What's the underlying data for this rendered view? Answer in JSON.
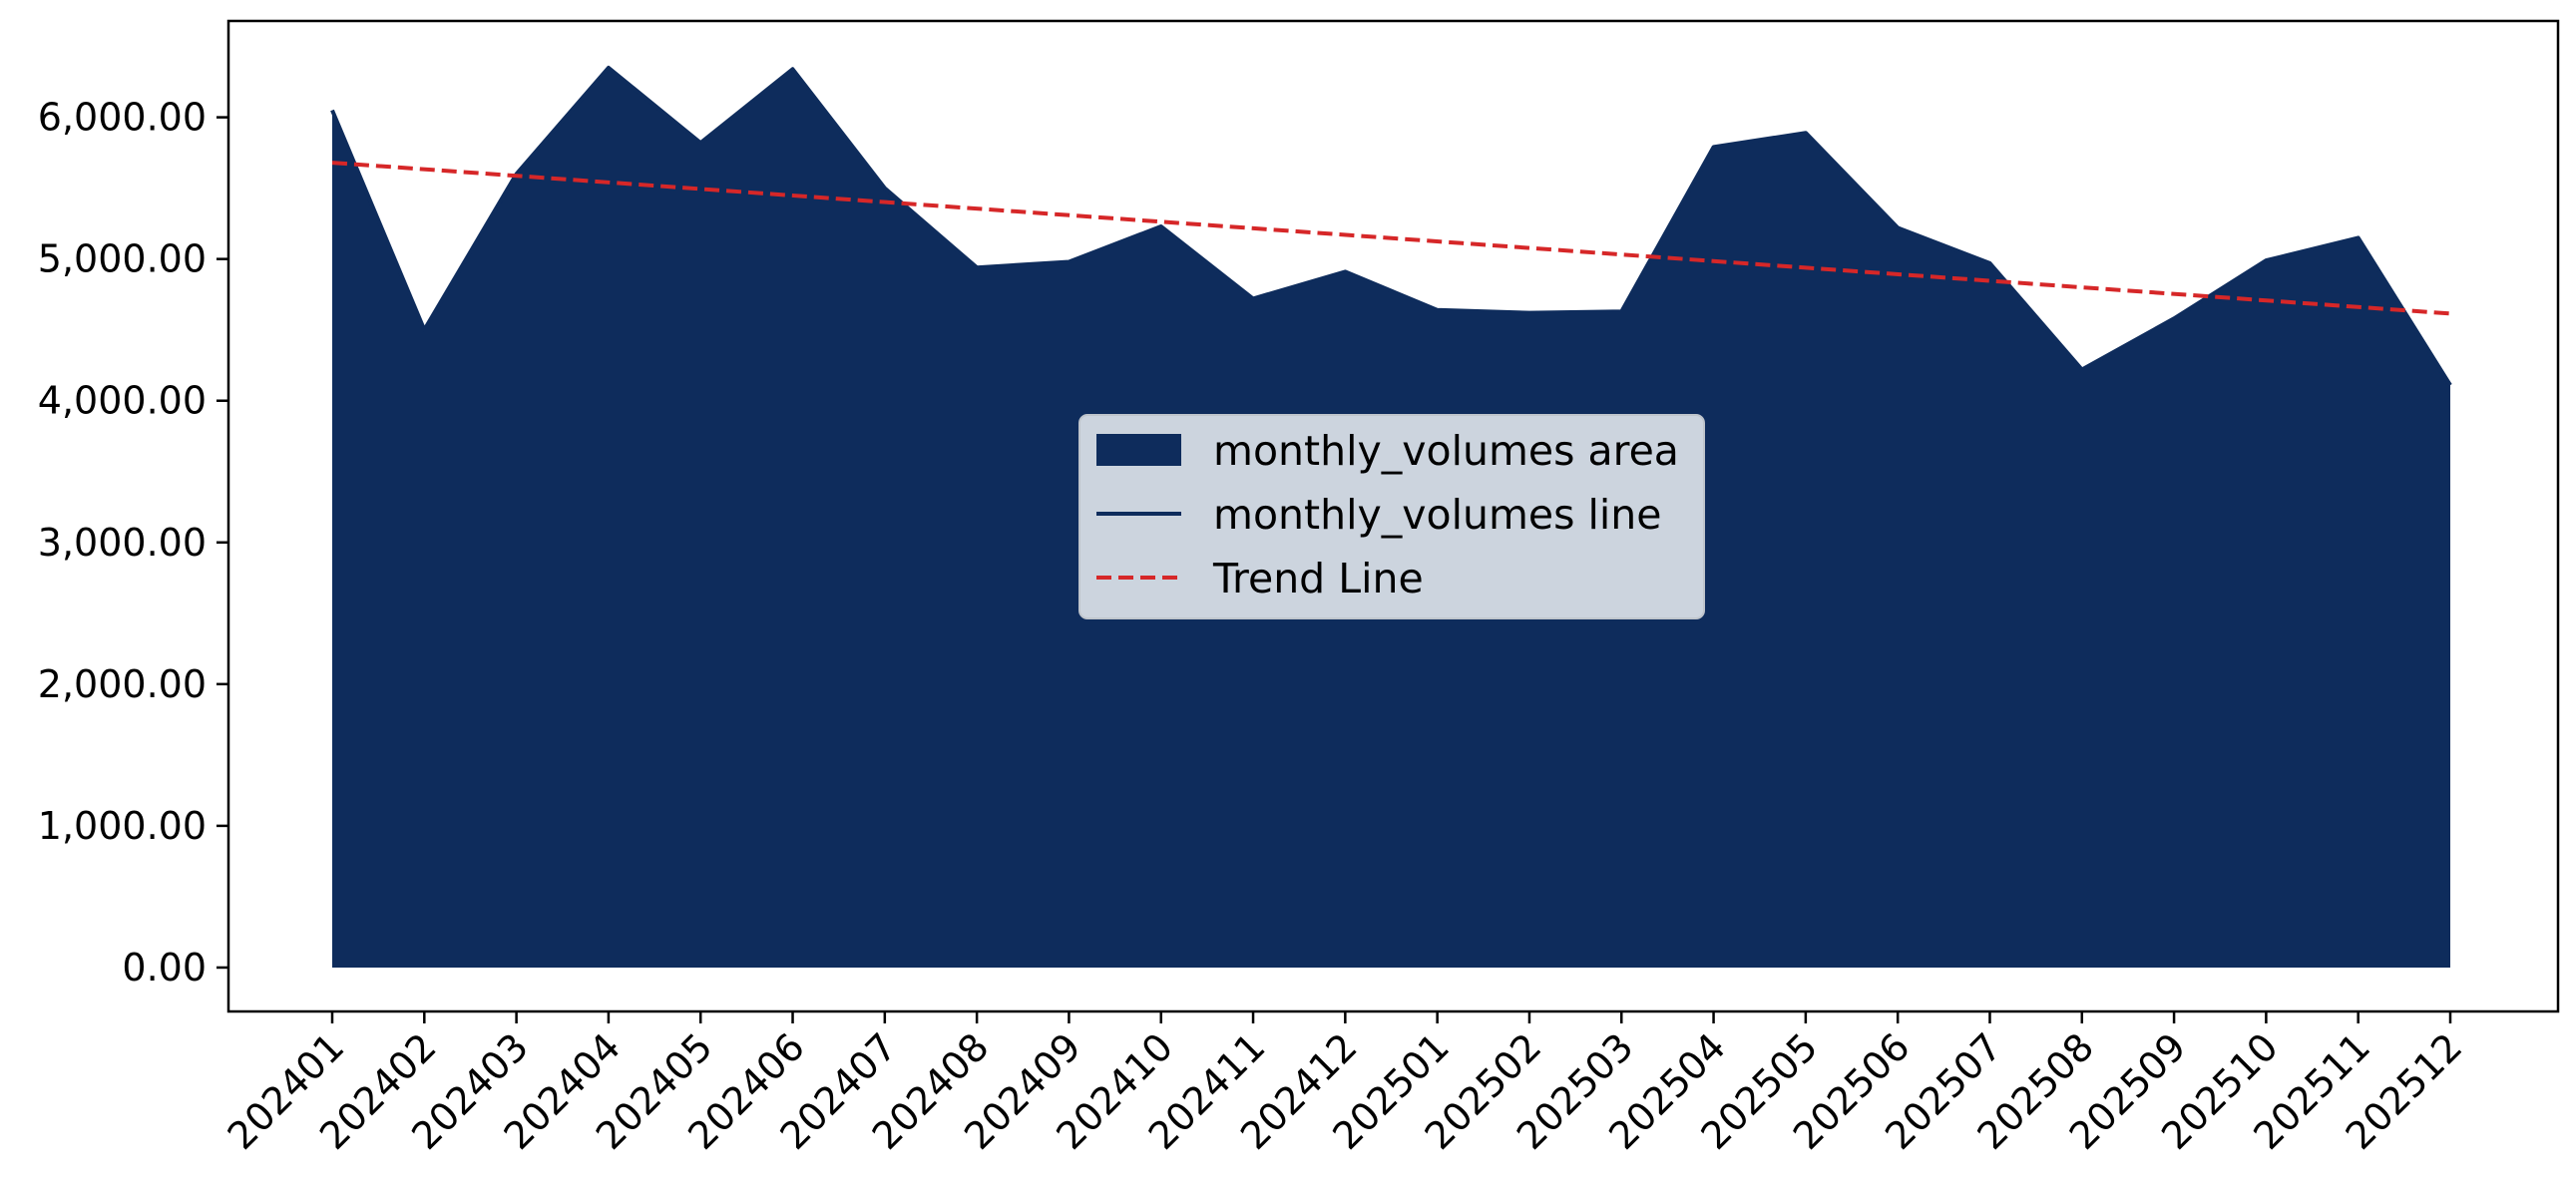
{
  "chart_data": {
    "type": "area",
    "title": "",
    "xlabel": "",
    "ylabel": "",
    "categories": [
      "202401",
      "202402",
      "202403",
      "202404",
      "202405",
      "202406",
      "202407",
      "202408",
      "202409",
      "202410",
      "202411",
      "202412",
      "202501",
      "202502",
      "202503",
      "202504",
      "202505",
      "202506",
      "202507",
      "202508",
      "202509",
      "202510",
      "202511",
      "202512"
    ],
    "series": [
      {
        "name": "monthly_volumes area",
        "kind": "area",
        "color": "#0e2c5c",
        "values": [
          6050,
          4500,
          5600,
          6350,
          5820,
          6340,
          5500,
          4940,
          4980,
          5230,
          4720,
          4910,
          4640,
          4620,
          4630,
          5790,
          5890,
          5220,
          4970,
          4220,
          4580,
          4990,
          5150,
          4110
        ]
      },
      {
        "name": "monthly_volumes line",
        "kind": "line",
        "color": "#0e2c5c",
        "values": [
          6050,
          4500,
          5600,
          6350,
          5820,
          6340,
          5500,
          4940,
          4980,
          5230,
          4720,
          4910,
          4640,
          4620,
          4630,
          5790,
          5890,
          5220,
          4970,
          4220,
          4580,
          4990,
          5150,
          4110
        ]
      },
      {
        "name": "Trend Line",
        "kind": "trend",
        "color": "#d62728",
        "start": 5680,
        "end": 4615
      }
    ],
    "y_ticks": [
      "0.00",
      "1,000.00",
      "2,000.00",
      "3,000.00",
      "4,000.00",
      "5,000.00",
      "6,000.00"
    ],
    "y_tick_values": [
      0,
      1000,
      2000,
      3000,
      4000,
      5000,
      6000
    ],
    "ylim": [
      -310,
      6680
    ],
    "grid": false,
    "legend_position": "center"
  }
}
